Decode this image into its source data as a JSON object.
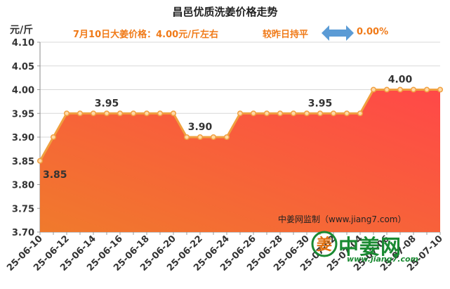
{
  "header": {
    "title": "昌邑优质洗姜价格走势",
    "unit": "元/斤",
    "info": "7月10日大姜价格：4.00元/斤左右",
    "compare": "较昨日持平",
    "change": "0.00%"
  },
  "source": "中姜网监制（www.jiang7.com）",
  "logo": {
    "mark": "姜",
    "name": "中姜网",
    "url": "www.jiang7.com"
  },
  "colors": {
    "line": "#f0a040",
    "marker_fill": "#ffd9a8",
    "area_top": "#ff4848",
    "area_bottom": "#f07a2c",
    "text_orange": "#f07a18",
    "arrow": "#5b9bd5",
    "logo_green": "#1a8a32"
  },
  "chart_data": {
    "type": "area",
    "x": [
      "25-06-10",
      "25-06-11",
      "25-06-12",
      "25-06-13",
      "25-06-14",
      "25-06-15",
      "25-06-16",
      "25-06-17",
      "25-06-18",
      "25-06-19",
      "25-06-20",
      "25-06-21",
      "25-06-22",
      "25-06-23",
      "25-06-24",
      "25-06-25",
      "25-06-26",
      "25-06-27",
      "25-06-28",
      "25-06-29",
      "25-06-30",
      "25-07-01",
      "25-07-02",
      "25-07-03",
      "25-07-04",
      "25-07-05",
      "25-07-06",
      "25-07-07",
      "25-07-08",
      "25-07-09",
      "25-07-10"
    ],
    "x_tick_labels": [
      "25-06-10",
      "25-06-12",
      "25-06-14",
      "25-06-16",
      "25-06-18",
      "25-06-20",
      "25-06-22",
      "25-06-24",
      "25-06-26",
      "25-06-28",
      "25-06-30",
      "25-07-02",
      "25-07-04",
      "25-07-06",
      "25-07-08",
      "25-07-10"
    ],
    "values": [
      3.85,
      3.9,
      3.95,
      3.95,
      3.95,
      3.95,
      3.95,
      3.95,
      3.95,
      3.95,
      3.95,
      3.9,
      3.9,
      3.9,
      3.9,
      3.95,
      3.95,
      3.95,
      3.95,
      3.95,
      3.95,
      3.95,
      3.95,
      3.95,
      3.95,
      4.0,
      4.0,
      4.0,
      4.0,
      4.0,
      4.0
    ],
    "ylim": [
      3.7,
      4.1
    ],
    "y_ticks": [
      "3.70",
      "3.75",
      "3.80",
      "3.85",
      "3.90",
      "3.95",
      "4.00",
      "4.05",
      "4.10"
    ],
    "grid": true,
    "annotations": [
      {
        "index": 0,
        "text": "3.85"
      },
      {
        "index": 5,
        "text": "3.95"
      },
      {
        "index": 12,
        "text": "3.90"
      },
      {
        "index": 21,
        "text": "3.95"
      },
      {
        "index": 27,
        "text": "4.00"
      }
    ]
  }
}
